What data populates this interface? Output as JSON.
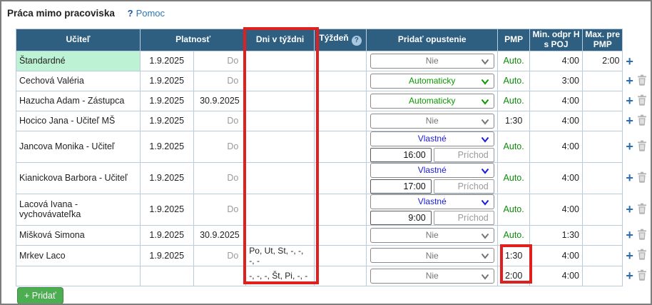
{
  "page": {
    "title": "Práca mimo pracoviska",
    "help_q": "?",
    "help_label": "Pomoc"
  },
  "table": {
    "headers": {
      "teacher": "Učiteľ",
      "validity": "Platnosť",
      "days": "Dni v týždni",
      "week": "Týždeň",
      "week_help": "?",
      "leave": "Pridať opustenie",
      "pmp": "PMP",
      "min_odpr": "Min. odpr H s POJ",
      "max_pre": "Max. pre PMP"
    },
    "rows": [
      {
        "name": "Štandardné",
        "highlight": true,
        "from": "1.9.2025",
        "to": "Do",
        "to_muted": true,
        "days": "",
        "leave": {
          "value": "Nie",
          "style": "muted"
        },
        "inputs": null,
        "pmp": "Auto.",
        "pmp_green": true,
        "min": "4:00",
        "max": "2:00",
        "can_delete": false,
        "tall": false
      },
      {
        "name": "Cechová Valéria",
        "highlight": false,
        "from": "1.9.2025",
        "to": "Do",
        "to_muted": true,
        "days": "",
        "leave": {
          "value": "Automaticky",
          "style": "green"
        },
        "inputs": null,
        "pmp": "Auto.",
        "pmp_green": true,
        "min": "3:00",
        "max": "",
        "can_delete": true,
        "tall": false
      },
      {
        "name": "Hazucha Adam - Zástupca",
        "highlight": false,
        "from": "1.9.2025",
        "to": "30.9.2025",
        "to_muted": false,
        "days": "",
        "leave": {
          "value": "Automaticky",
          "style": "green"
        },
        "inputs": null,
        "pmp": "Auto.",
        "pmp_green": true,
        "min": "4:00",
        "max": "",
        "can_delete": true,
        "tall": false
      },
      {
        "name": "Hocico Jana - Učiteľ MŠ",
        "highlight": false,
        "from": "1.9.2025",
        "to": "Do",
        "to_muted": true,
        "days": "",
        "leave": {
          "value": "Nie",
          "style": "muted"
        },
        "inputs": null,
        "pmp": "1:30",
        "pmp_green": false,
        "min": "4:00",
        "max": "",
        "can_delete": true,
        "tall": false
      },
      {
        "name": "Jancova Monika - Učiteľ",
        "highlight": false,
        "from": "1.9.2025",
        "to": "Do",
        "to_muted": true,
        "days": "",
        "leave": {
          "value": "Vlastné",
          "style": "blue"
        },
        "inputs": {
          "time": "16:00",
          "placeholder": "Príchod"
        },
        "pmp": "Auto.",
        "pmp_green": true,
        "min": "4:00",
        "max": "",
        "can_delete": true,
        "tall": true
      },
      {
        "name": "Kianickova Barbora - Učiteľ",
        "highlight": false,
        "from": "1.9.2025",
        "to": "Do",
        "to_muted": true,
        "days": "",
        "leave": {
          "value": "Vlastné",
          "style": "blue"
        },
        "inputs": {
          "time": "17:00",
          "placeholder": "Príchod"
        },
        "pmp": "Auto.",
        "pmp_green": true,
        "min": "4:00",
        "max": "",
        "can_delete": true,
        "tall": true
      },
      {
        "name": "Lacová Ivana - vychovávateľka",
        "highlight": false,
        "from": "1.9.2025",
        "to": "Do",
        "to_muted": true,
        "days": "",
        "leave": {
          "value": "Vlastné",
          "style": "blue"
        },
        "inputs": {
          "time": "9:00",
          "placeholder": "Príchod"
        },
        "pmp": "Auto.",
        "pmp_green": true,
        "min": "4:00",
        "max": "",
        "can_delete": true,
        "tall": true
      },
      {
        "name": "Mišková Simona",
        "highlight": false,
        "from": "1.9.2025",
        "to": "30.9.2025",
        "to_muted": false,
        "days": "",
        "leave": {
          "value": "Nie",
          "style": "muted"
        },
        "inputs": null,
        "pmp": "Auto.",
        "pmp_green": true,
        "min": "1:30",
        "max": "",
        "can_delete": true,
        "tall": false
      },
      {
        "name": "Mrkev Laco",
        "highlight": false,
        "from": "1.9.2025",
        "to": "Do",
        "to_muted": true,
        "days": "Po, Ut, St, -, -, -, -",
        "leave": {
          "value": "Nie",
          "style": "muted"
        },
        "inputs": null,
        "pmp": "1:30",
        "pmp_green": false,
        "min": "4:00",
        "max": "",
        "can_delete": true,
        "tall": false
      },
      {
        "name": "",
        "highlight": false,
        "from": "",
        "to": "",
        "to_muted": false,
        "days": "-, -, -, Št, Pi, -, -",
        "leave": {
          "value": "Nie",
          "style": "muted"
        },
        "inputs": null,
        "pmp": "2:00",
        "pmp_green": false,
        "min": "4:00",
        "max": "",
        "can_delete": true,
        "tall": false
      }
    ]
  },
  "add_button": {
    "label": "+ Pridať"
  },
  "colors": {
    "header_bg": "#2e5f80",
    "highlight_green": "#bdf2d4",
    "annotation_red": "#e01f1f",
    "link_blue": "#2e75b5",
    "select_muted": "#757575",
    "select_green": "#0c9a00",
    "select_blue": "#1a1ad8",
    "auto_green": "#0c8a0c",
    "plus_blue": "#2a6db0",
    "trash_gray": "#b4b4b4",
    "button_green": "#4cae50"
  }
}
